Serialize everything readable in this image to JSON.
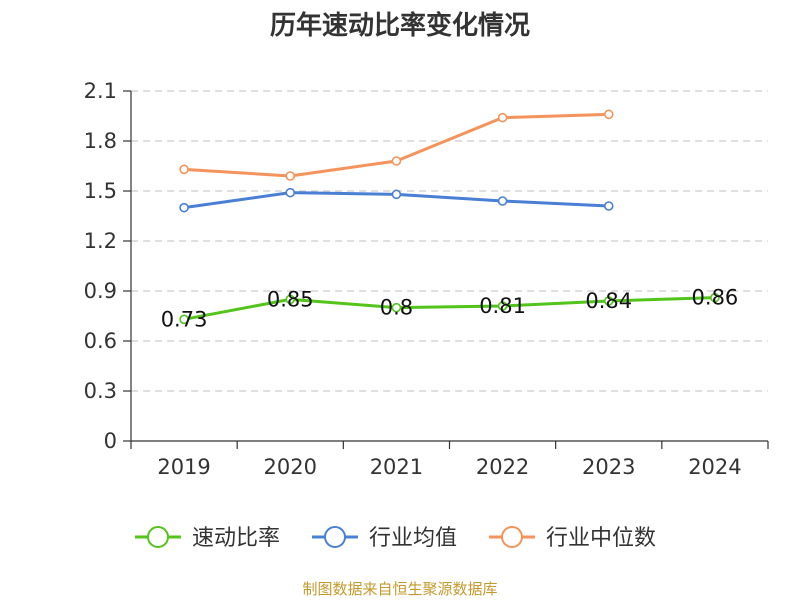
{
  "chart_data": {
    "type": "line",
    "title": "历年速动比率变化情况",
    "categories": [
      "2019",
      "2020",
      "2021",
      "2022",
      "2023",
      "2024"
    ],
    "ylim": [
      0,
      2.1
    ],
    "yticks": [
      "0",
      "0.3",
      "0.6",
      "0.9",
      "1.2",
      "1.5",
      "1.8",
      "2.1"
    ],
    "grid": true,
    "legend_position": "bottom",
    "series": [
      {
        "name": "速动比率",
        "color": "#52c41a",
        "values": [
          0.73,
          0.85,
          0.8,
          0.81,
          0.84,
          0.86
        ],
        "labels": [
          "0.73",
          "0.85",
          "0.8",
          "0.81",
          "0.84",
          "0.86"
        ]
      },
      {
        "name": "行业均值",
        "color": "#4a7fd6",
        "values": [
          1.4,
          1.49,
          1.48,
          1.44,
          1.41,
          null
        ]
      },
      {
        "name": "行业中位数",
        "color": "#f4935b",
        "values": [
          1.63,
          1.59,
          1.68,
          1.94,
          1.96,
          null
        ]
      }
    ],
    "source": "制图数据来自恒生聚源数据库"
  }
}
